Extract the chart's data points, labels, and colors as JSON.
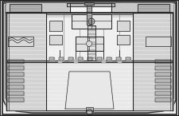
{
  "bg_color": "#e8e8e8",
  "line_color": "#222222",
  "white": "#f5f5f5",
  "light_gray": "#d8d8d8",
  "mid_gray": "#b8b8b8",
  "dark_gray": "#888888",
  "hull_fill": "#c8c8c8",
  "figsize": [
    2.25,
    1.46
  ],
  "dpi": 100
}
